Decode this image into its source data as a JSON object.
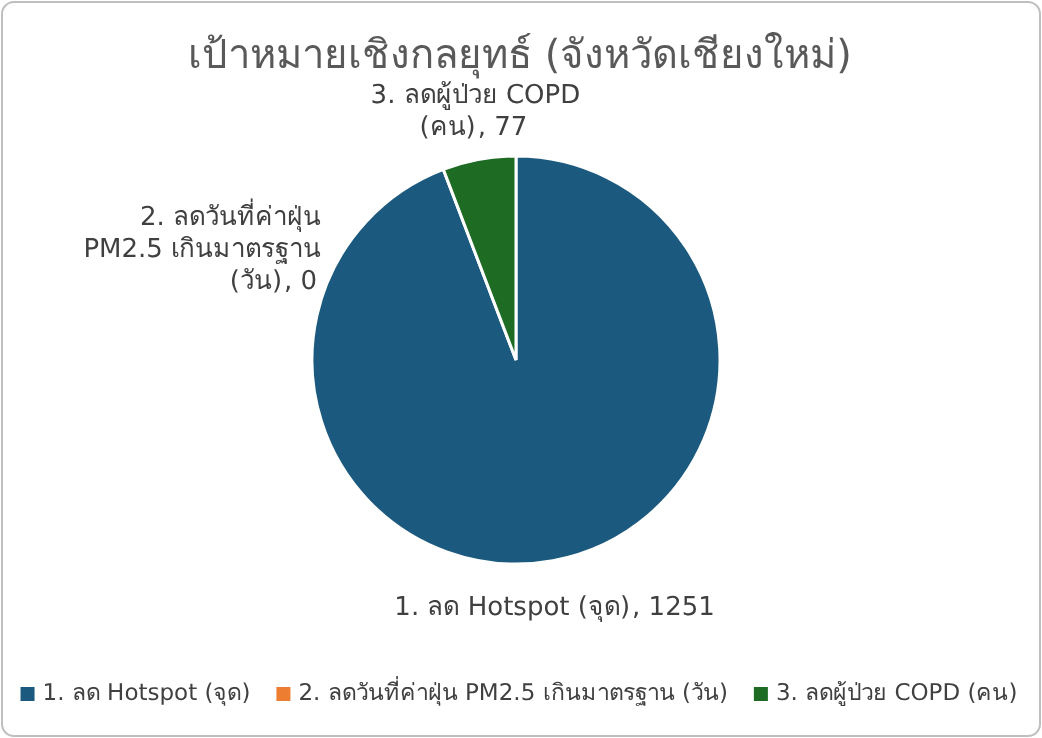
{
  "chart_data": {
    "type": "pie",
    "title": "เป้าหมายเชิงกลยุทธ์ (จังหวัดเชียงใหม่)",
    "categories": [
      "1. ลด Hotspot (จุด)",
      "2. ลดวันที่ค่าฝุ่น PM2.5 เกินมาตรฐาน (วัน)",
      "3. ลดผู้ป่วย COPD (คน)"
    ],
    "values": [
      1251,
      0,
      77
    ],
    "value_labels": [
      ", 1251",
      ", 0",
      ", 77"
    ],
    "colors": [
      "#1b5a7e",
      "#ed7d31",
      "#1e6b24"
    ],
    "legend": "bottom"
  }
}
